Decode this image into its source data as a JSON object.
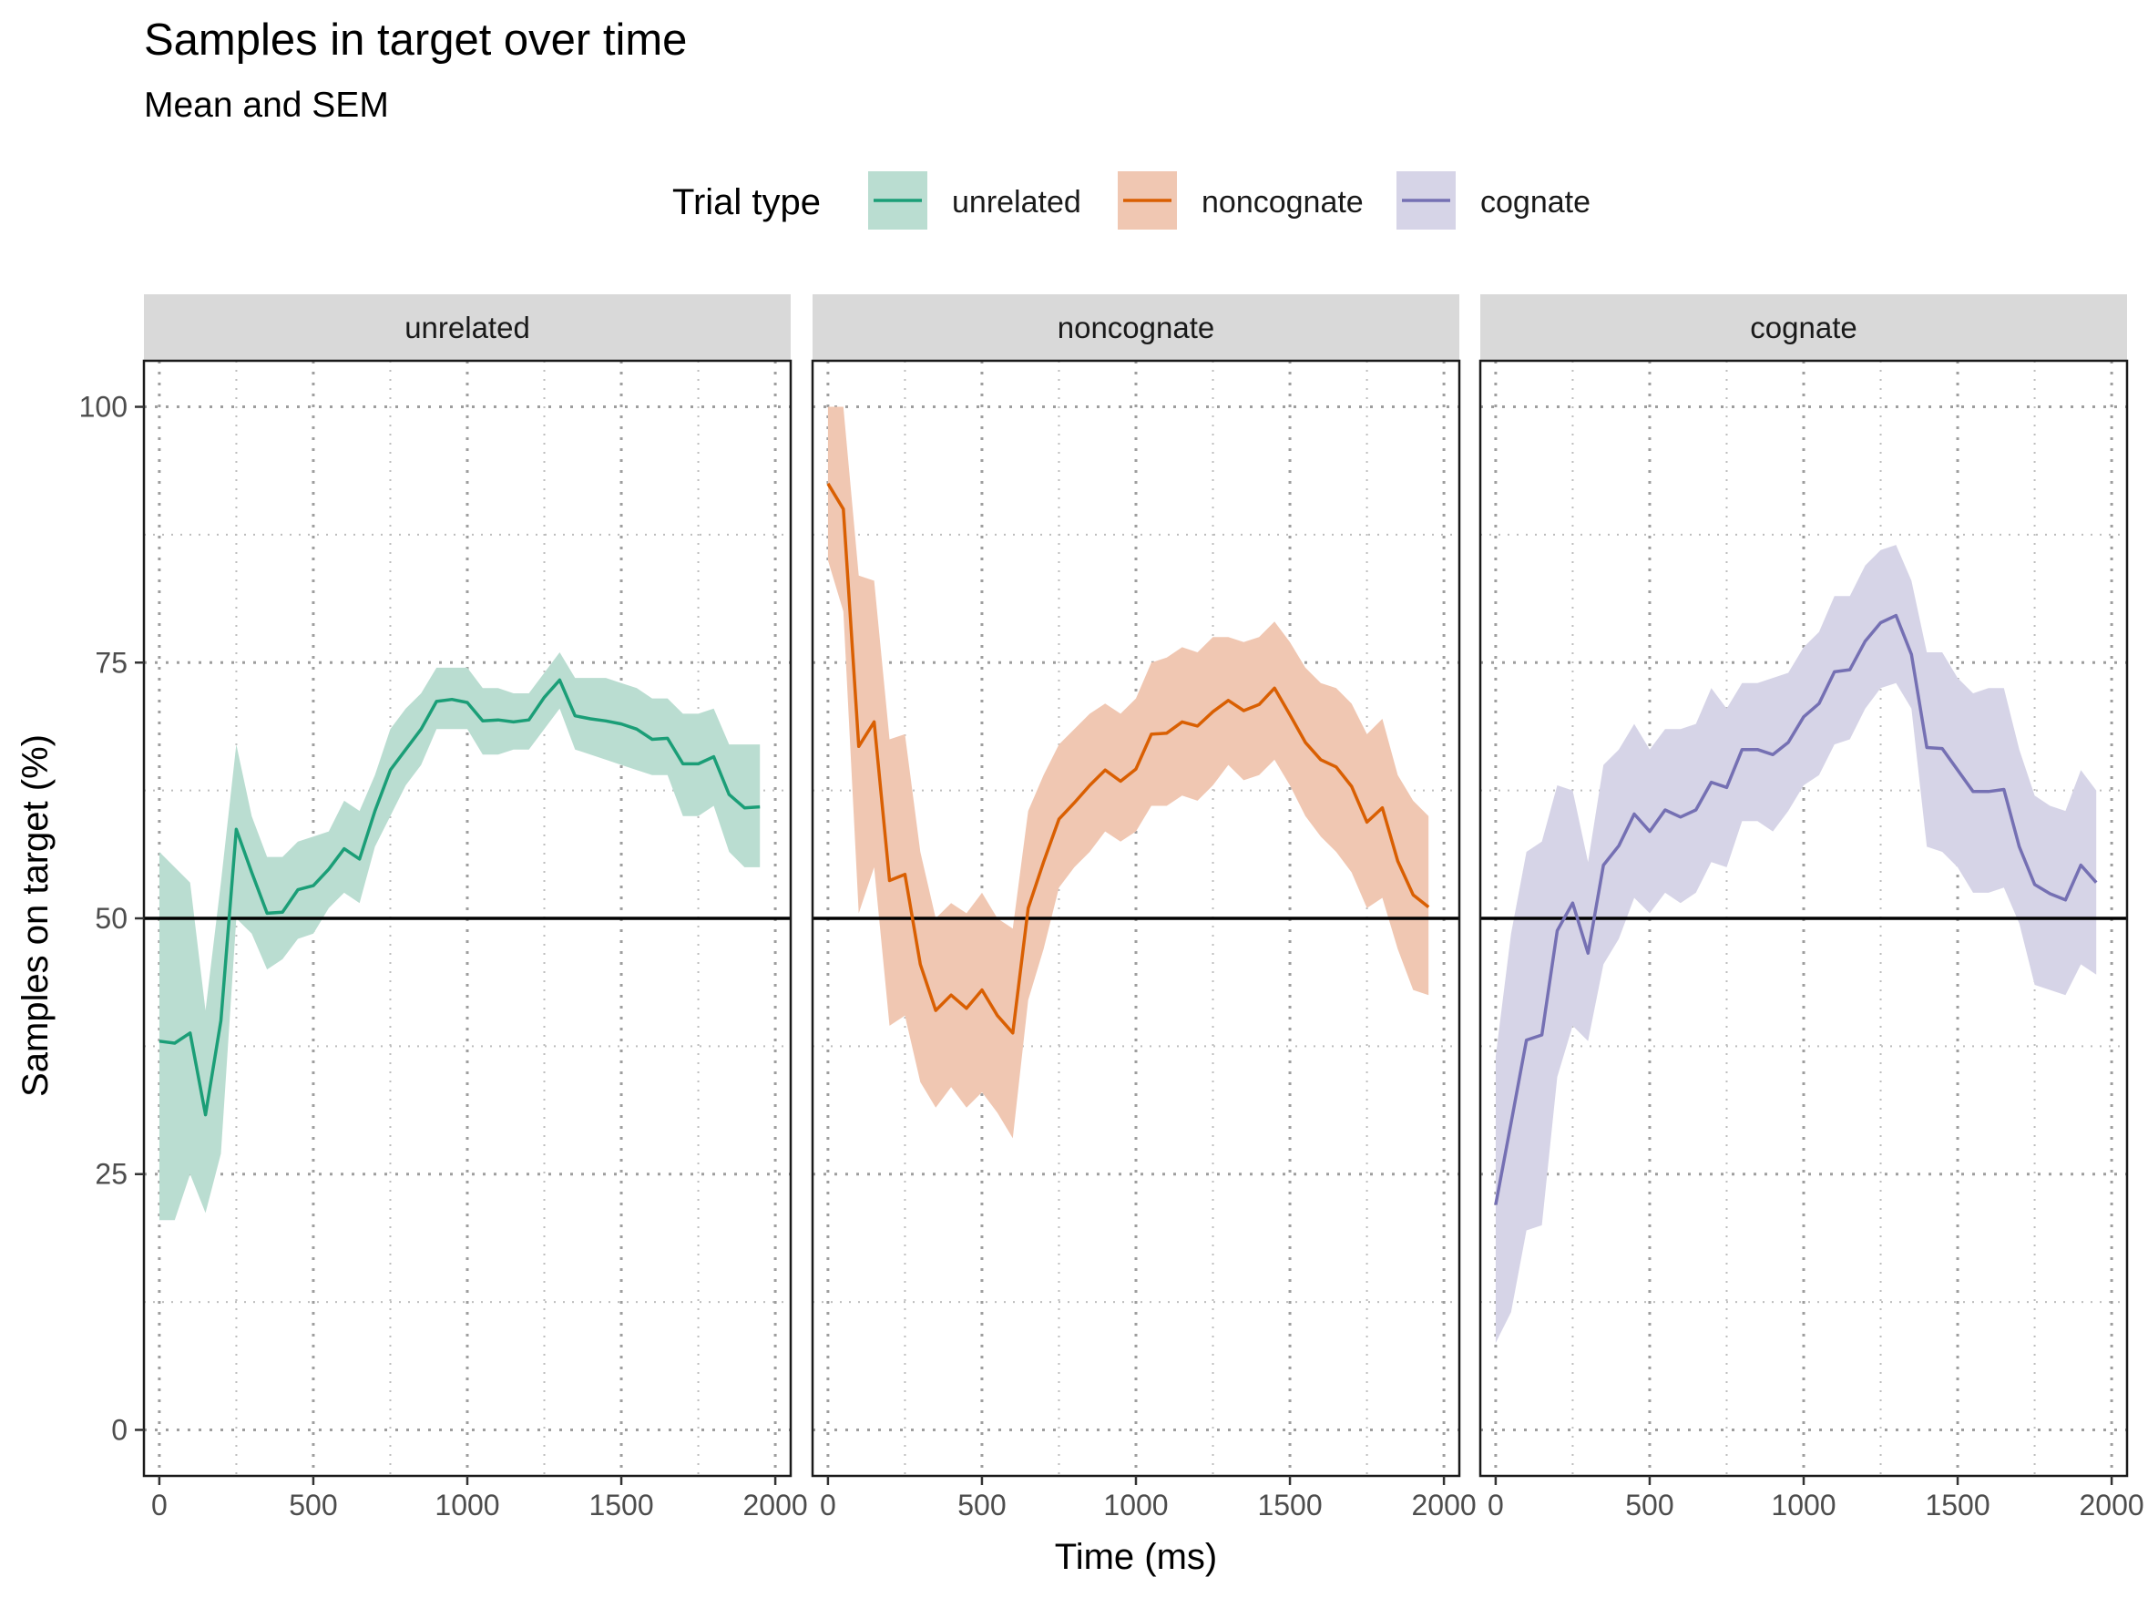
{
  "chart_data": {
    "type": "line",
    "title": "Samples in target over time",
    "subtitle": "Mean and SEM",
    "xlabel": "Time (ms)",
    "ylabel": "Samples on target (%)",
    "xlim": [
      -50,
      2050
    ],
    "ylim": [
      -4.5,
      104.5
    ],
    "x_ticks": [
      0,
      500,
      1000,
      1500,
      2000
    ],
    "y_ticks": [
      0,
      25,
      50,
      75,
      100
    ],
    "x_tick_labels": [
      "0",
      "500",
      "1000",
      "1500",
      "2000"
    ],
    "y_tick_labels": [
      "0",
      "25",
      "50",
      "75",
      "100"
    ],
    "grid": true,
    "reference_line_y": 50,
    "legend": {
      "title": "Trial type",
      "position": "top",
      "entries": [
        "unrelated",
        "noncognate",
        "cognate"
      ]
    },
    "x": [
      0,
      50,
      100,
      150,
      200,
      250,
      300,
      350,
      400,
      450,
      500,
      550,
      600,
      650,
      700,
      750,
      800,
      850,
      900,
      950,
      1000,
      1050,
      1100,
      1150,
      1200,
      1250,
      1300,
      1350,
      1400,
      1450,
      1500,
      1550,
      1600,
      1650,
      1700,
      1750,
      1800,
      1850,
      1900,
      1950
    ],
    "panels": [
      {
        "name": "unrelated",
        "color": "#1B9E77",
        "fill": "#BADDD1",
        "mean": [
          38,
          37.8,
          38.8,
          30.8,
          40,
          58.7,
          54.5,
          50.5,
          50.6,
          52.8,
          53.2,
          54.8,
          56.8,
          55.8,
          60.5,
          64.5,
          66.5,
          68.5,
          71.2,
          71.4,
          71.1,
          69.3,
          69.4,
          69.2,
          69.4,
          71.6,
          73.3,
          69.8,
          69.5,
          69.3,
          69,
          68.5,
          67.5,
          67.6,
          65.1,
          65.1,
          65.8,
          62.1,
          60.8,
          60.9
        ],
        "lower": [
          20.5,
          20.5,
          25,
          21.2,
          27,
          50,
          48.5,
          45,
          46,
          48,
          48.5,
          51,
          52.5,
          51.5,
          57,
          60,
          63,
          65,
          68.5,
          68.5,
          68.5,
          66,
          66,
          66.5,
          66.5,
          68.5,
          70.5,
          66.5,
          66,
          65.5,
          65,
          64.5,
          64,
          64,
          60,
          60,
          61,
          56.5,
          55,
          55
        ],
        "upper": [
          56.5,
          55,
          53.5,
          41,
          53.5,
          67,
          60,
          56,
          56,
          57.5,
          58,
          58.5,
          61.5,
          60.5,
          64,
          68.5,
          70.5,
          72,
          74.5,
          74.5,
          74.5,
          72.5,
          72.5,
          72,
          72,
          74,
          76,
          73.5,
          73.5,
          73.5,
          73,
          72.5,
          71.5,
          71.5,
          70,
          70,
          70.5,
          67,
          67,
          67
        ]
      },
      {
        "name": "noncognate",
        "color": "#D95F02",
        "fill": "#F0C7B2",
        "mean": [
          92.5,
          90,
          66.8,
          69.2,
          53.7,
          54.3,
          45.5,
          41,
          42.5,
          41.2,
          43,
          40.5,
          38.8,
          51,
          55.5,
          59.7,
          61.3,
          63,
          64.5,
          63.4,
          64.6,
          68,
          68.1,
          69.2,
          68.8,
          70.2,
          71.3,
          70.3,
          70.9,
          72.5,
          69.9,
          67.2,
          65.5,
          64.8,
          62.9,
          59.4,
          60.8,
          55.6,
          52.3,
          51.1
        ],
        "lower": [
          85,
          80,
          50.5,
          55,
          39.5,
          40.5,
          34,
          31.5,
          33.5,
          31.5,
          33,
          31,
          28.5,
          42,
          47,
          53,
          55,
          56.5,
          58.5,
          57.5,
          58.5,
          61,
          61,
          62,
          61.5,
          63,
          65,
          63.5,
          64,
          65.5,
          63,
          60,
          58,
          56.5,
          54.5,
          51,
          52,
          47,
          43,
          42.5
        ],
        "upper": [
          100,
          100,
          83.5,
          83,
          67.5,
          68,
          56.5,
          50,
          51.5,
          50.5,
          52.5,
          50,
          49,
          60.5,
          64,
          67,
          68.5,
          70,
          71,
          70,
          71.5,
          75,
          75.5,
          76.5,
          76,
          77.5,
          77.5,
          77,
          77.5,
          79,
          77,
          74.5,
          73,
          72.5,
          71,
          68,
          69.5,
          64,
          61.5,
          60
        ]
      },
      {
        "name": "cognate",
        "color": "#7570B3",
        "fill": "#D6D4E7",
        "mean": [
          22,
          30,
          38.1,
          38.6,
          48.8,
          51.5,
          46.6,
          55.2,
          57.1,
          60.2,
          58.5,
          60.6,
          59.9,
          60.6,
          63.3,
          62.8,
          66.5,
          66.5,
          66,
          67.2,
          69.7,
          71,
          74.1,
          74.3,
          77.1,
          78.9,
          79.6,
          75.8,
          66.7,
          66.6,
          64.5,
          62.4,
          62.4,
          62.6,
          57,
          53.3,
          52.4,
          51.8,
          55.2,
          53.5
        ],
        "lower": [
          8.5,
          11.5,
          19.5,
          20,
          34.5,
          39.5,
          38,
          45.5,
          48,
          52,
          50.5,
          52.5,
          51.5,
          52.5,
          55.5,
          55,
          59.5,
          59.5,
          58.5,
          60.5,
          63,
          64,
          67,
          67.5,
          70.5,
          72.5,
          73,
          70.5,
          57,
          56.5,
          55,
          52.5,
          52.5,
          53,
          49.5,
          43.5,
          43,
          42.5,
          45.5,
          44.5
        ],
        "upper": [
          36.5,
          48.5,
          56.5,
          57.5,
          63,
          62.5,
          55.5,
          65,
          66.5,
          69,
          66.5,
          68.5,
          68.5,
          69,
          72.5,
          70.5,
          73,
          73,
          73.5,
          74,
          76.5,
          78,
          81.5,
          81.5,
          84.5,
          86,
          86.5,
          83,
          76,
          76,
          73.5,
          72,
          72.5,
          72.5,
          66.5,
          62,
          61,
          60.5,
          64.5,
          62.5
        ]
      }
    ]
  }
}
